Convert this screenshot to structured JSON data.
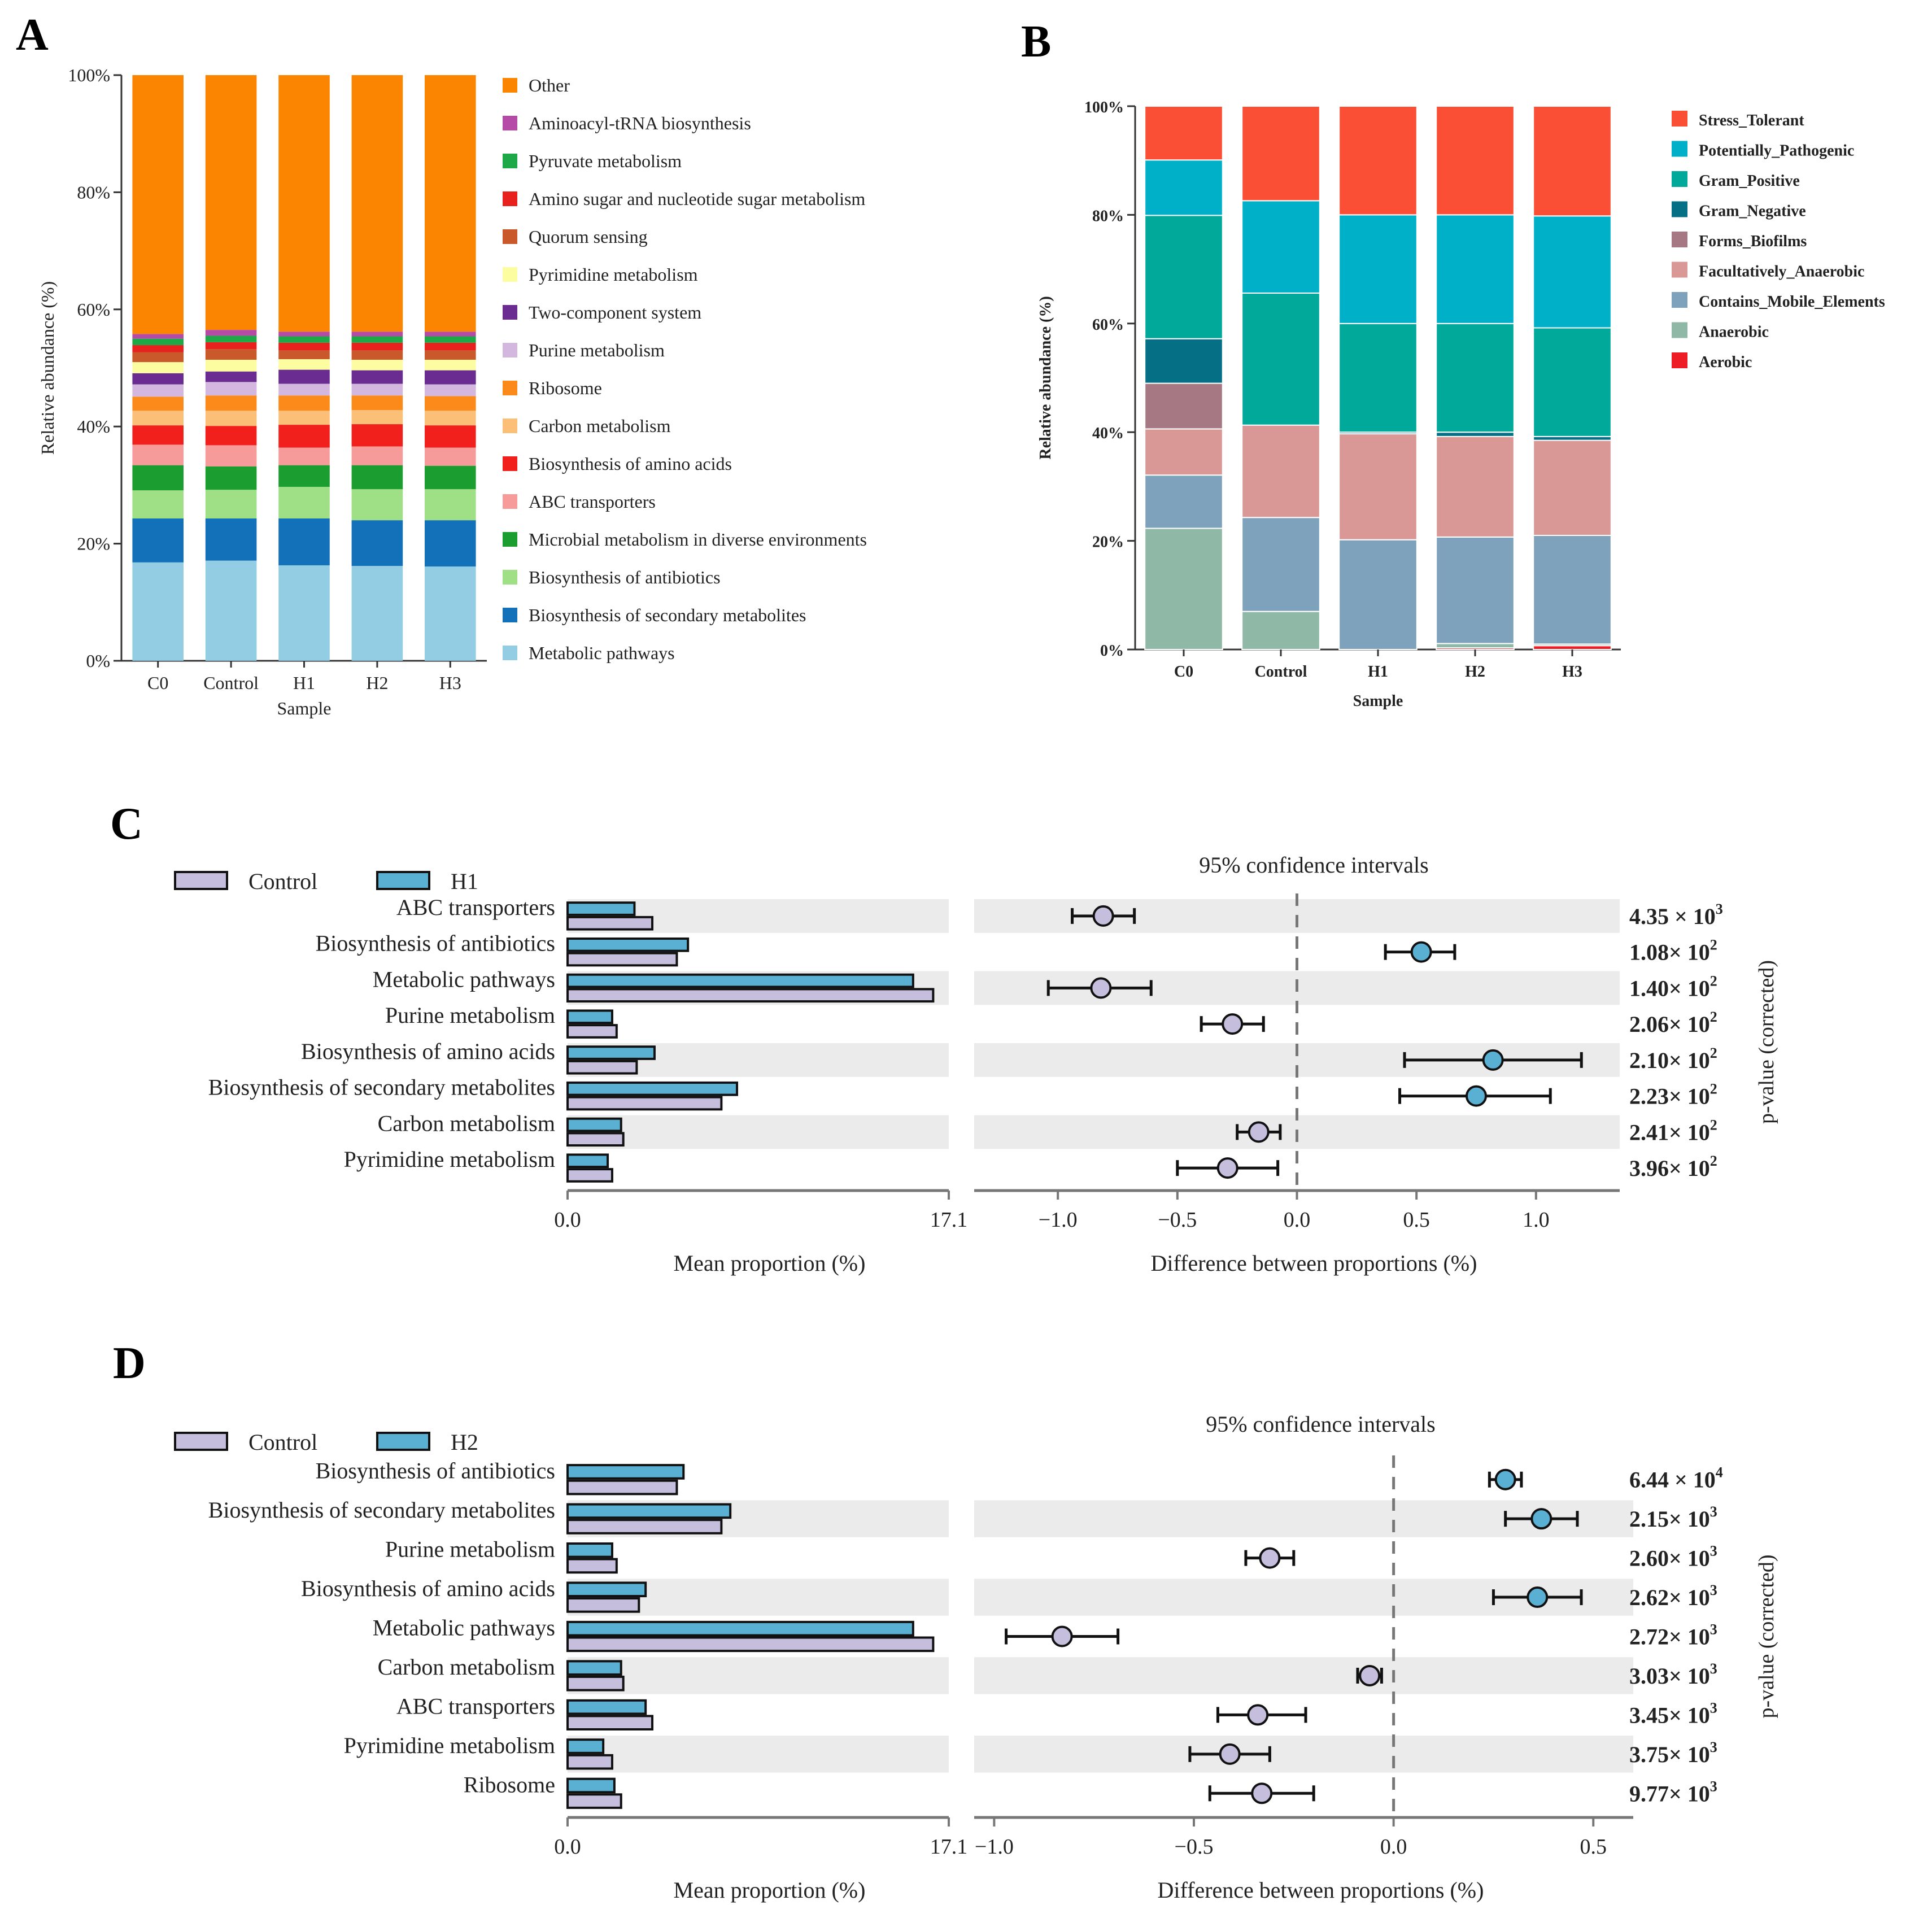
{
  "panels": {
    "A": "A",
    "B": "B",
    "C": "C",
    "D": "D"
  },
  "chart_data": [
    {
      "panel": "A",
      "type": "bar",
      "stacked": true,
      "categories": [
        "C0",
        "Control",
        "H1",
        "H2",
        "H3"
      ],
      "xlabel": "Sample",
      "ylabel": "Relative abundance (%)",
      "ylim": [
        0,
        100
      ],
      "yticks": [
        "0%",
        "20%",
        "40%",
        "60%",
        "80%",
        "100%"
      ],
      "legend_position": "right",
      "series": [
        {
          "name": "Metabolic pathways",
          "color": "#92cde3",
          "values": [
            16.8,
            17.1,
            16.3,
            16.2,
            16.1
          ]
        },
        {
          "name": "Biosynthesis of secondary metabolites",
          "color": "#1271b8",
          "values": [
            7.5,
            7.2,
            8.0,
            7.8,
            7.9
          ]
        },
        {
          "name": "Biosynthesis of antibiotics",
          "color": "#9fdf85",
          "values": [
            4.8,
            4.9,
            5.4,
            5.3,
            5.3
          ]
        },
        {
          "name": "Microbial metabolism in diverse environments",
          "color": "#1b9e2f",
          "values": [
            4.3,
            4.0,
            3.7,
            4.1,
            4.0
          ]
        },
        {
          "name": "ABC transporters",
          "color": "#f79a9a",
          "values": [
            3.5,
            3.6,
            3.0,
            3.2,
            3.1
          ]
        },
        {
          "name": "Biosynthesis of amino acids",
          "color": "#f2201d",
          "values": [
            3.3,
            3.3,
            3.9,
            3.8,
            3.8
          ]
        },
        {
          "name": "Carbon metabolism",
          "color": "#fbbf77",
          "values": [
            2.5,
            2.6,
            2.4,
            2.4,
            2.5
          ]
        },
        {
          "name": "Ribosome",
          "color": "#fb8a1a",
          "values": [
            2.4,
            2.6,
            2.6,
            2.5,
            2.5
          ]
        },
        {
          "name": "Purine metabolism",
          "color": "#d3b7de",
          "values": [
            2.1,
            2.3,
            2.0,
            2.0,
            2.0
          ]
        },
        {
          "name": "Two-component system",
          "color": "#6a2c91",
          "values": [
            1.9,
            1.8,
            2.4,
            2.3,
            2.4
          ]
        },
        {
          "name": "Pyrimidine metabolism",
          "color": "#fcfca1",
          "values": [
            1.9,
            2.0,
            1.8,
            1.8,
            1.8
          ]
        },
        {
          "name": "Quorum sensing",
          "color": "#c9582a",
          "values": [
            1.7,
            1.8,
            1.5,
            1.6,
            1.6
          ]
        },
        {
          "name": "Amino sugar and nucleotide sugar metabolism",
          "color": "#e8201e",
          "values": [
            1.2,
            1.2,
            1.3,
            1.3,
            1.3
          ]
        },
        {
          "name": "Pyruvate metabolism",
          "color": "#1fa847",
          "values": [
            1.1,
            1.1,
            1.1,
            1.1,
            1.1
          ]
        },
        {
          "name": "Aminoacyl-tRNA biosynthesis",
          "color": "#b54ba6",
          "values": [
            0.8,
            1.0,
            0.8,
            0.8,
            0.8
          ]
        },
        {
          "name": "Other",
          "color": "#fb8500",
          "values": [
            44.2,
            43.5,
            43.8,
            43.8,
            43.8
          ]
        }
      ],
      "legend_order": [
        "Other",
        "Aminoacyl-tRNA biosynthesis",
        "Pyruvate metabolism",
        "Amino sugar and nucleotide sugar metabolism",
        "Quorum sensing",
        "Pyrimidine metabolism",
        "Two-component system",
        "Purine metabolism",
        "Ribosome",
        "Carbon metabolism",
        "Biosynthesis of amino acids",
        "ABC transporters",
        "Microbial metabolism in diverse environments",
        "Biosynthesis of antibiotics",
        "Biosynthesis of secondary metabolites",
        "Metabolic pathways"
      ]
    },
    {
      "panel": "B",
      "type": "bar",
      "stacked": true,
      "categories": [
        "C0",
        "Control",
        "H1",
        "H2",
        "H3"
      ],
      "xlabel": "Sample",
      "ylabel": "Relative abundance (%)",
      "ylim": [
        0,
        100
      ],
      "yticks": [
        "0%",
        "20%",
        "40%",
        "60%",
        "80%",
        "100%"
      ],
      "legend_position": "right",
      "series": [
        {
          "name": "Aerobic",
          "color": "#ee1c24",
          "values": [
            0.0,
            0.0,
            0.0,
            0.3,
            0.7
          ]
        },
        {
          "name": "Anaerobic",
          "color": "#8fb8a7",
          "values": [
            22.3,
            7.0,
            0.0,
            0.8,
            0.3
          ]
        },
        {
          "name": "Contains_Mobile_Elements",
          "color": "#7ea2bb",
          "values": [
            9.8,
            17.3,
            20.2,
            19.6,
            20.0
          ]
        },
        {
          "name": "Facultatively_Anaerobic",
          "color": "#d99795",
          "values": [
            8.5,
            17.0,
            19.5,
            18.5,
            17.5
          ]
        },
        {
          "name": "Forms_Biofilms",
          "color": "#a57884",
          "values": [
            8.4,
            0.0,
            0.0,
            0.0,
            0.0
          ]
        },
        {
          "name": "Gram_Negative",
          "color": "#046f85",
          "values": [
            8.2,
            0.0,
            0.3,
            0.8,
            0.7
          ]
        },
        {
          "name": "Gram_Positive",
          "color": "#00a99a",
          "values": [
            22.7,
            24.3,
            20.0,
            20.0,
            20.0
          ]
        },
        {
          "name": "Potentially_Pathogenic",
          "color": "#00b0c8",
          "values": [
            10.2,
            17.0,
            20.0,
            20.0,
            20.6
          ]
        },
        {
          "name": "Stress_Tolerant",
          "color": "#fa4f34",
          "values": [
            9.9,
            17.4,
            20.0,
            20.0,
            20.2
          ]
        }
      ],
      "legend_order": [
        "Stress_Tolerant",
        "Potentially_Pathogenic",
        "Gram_Positive",
        "Gram_Negative",
        "Forms_Biofilms",
        "Facultatively_Anaerobic",
        "Contains_Mobile_Elements",
        "Anaerobic",
        "Aerobic"
      ]
    },
    {
      "panel": "C",
      "type": "bar",
      "subtype": "extended-error-bar",
      "groups": [
        {
          "name": "Control",
          "color": "#c5bfdd"
        },
        {
          "name": "H1",
          "color": "#5ab0d2"
        }
      ],
      "left_xlabel": "Mean proportion (%)",
      "left_xlim": [
        0.0,
        17.1
      ],
      "left_xticks": [
        "0.0",
        "17.1"
      ],
      "right_title": "95% confidence intervals",
      "right_xlabel": "Difference between proportions (%)",
      "right_xlim": [
        -1.35,
        1.35
      ],
      "right_xticks": [
        -1.0,
        -0.5,
        0.0,
        0.5,
        1.0
      ],
      "right_xtick_labels": [
        "−1.0",
        "−0.5",
        "0.0",
        "0.5",
        "1.0"
      ],
      "pvalue_label": "p-value (corrected)",
      "categories": [
        "ABC transporters",
        "Biosynthesis of antibiotics",
        "Metabolic pathways",
        "Purine metabolism",
        "Biosynthesis of amino acids",
        "Biosynthesis of secondary metabolites",
        "Carbon metabolism",
        "Pyrimidine metabolism"
      ],
      "group2_mean": [
        3.0,
        5.4,
        15.5,
        2.0,
        3.9,
        7.6,
        2.4,
        1.8
      ],
      "group1_mean": [
        3.8,
        4.9,
        16.4,
        2.2,
        3.1,
        6.9,
        2.5,
        2.0
      ],
      "diff": [
        -0.81,
        0.52,
        -0.82,
        -0.27,
        0.82,
        0.75,
        -0.16,
        -0.29
      ],
      "ci_low": [
        -0.94,
        0.37,
        -1.04,
        -0.4,
        0.45,
        0.43,
        -0.25,
        -0.5
      ],
      "ci_high": [
        -0.68,
        0.66,
        -0.61,
        -0.14,
        1.19,
        1.06,
        -0.07,
        -0.08
      ],
      "winner": [
        "Control",
        "H1",
        "Control",
        "Control",
        "H1",
        "H1",
        "Control",
        "Control"
      ],
      "pvalues": [
        {
          "base": "4.35 × 10",
          "exp": "3"
        },
        {
          "base": "1.08× 10",
          "exp": "2"
        },
        {
          "base": "1.40× 10",
          "exp": "2"
        },
        {
          "base": "2.06× 10",
          "exp": "2"
        },
        {
          "base": "2.10× 10",
          "exp": "2"
        },
        {
          "base": "2.23× 10",
          "exp": "2"
        },
        {
          "base": "2.41× 10",
          "exp": "2"
        },
        {
          "base": "3.96× 10",
          "exp": "2"
        }
      ]
    },
    {
      "panel": "D",
      "type": "bar",
      "subtype": "extended-error-bar",
      "groups": [
        {
          "name": "Control",
          "color": "#c5bfdd"
        },
        {
          "name": "H2",
          "color": "#5ab0d2"
        }
      ],
      "left_xlabel": "Mean proportion (%)",
      "left_xlim": [
        0.0,
        17.1
      ],
      "left_xticks": [
        "0.0",
        "17.1"
      ],
      "right_title": "95% confidence intervals",
      "right_xlabel": "Difference between proportions (%)",
      "right_xlim": [
        -1.05,
        0.6
      ],
      "right_xticks": [
        -1.0,
        -0.5,
        0.0,
        0.5
      ],
      "right_xtick_labels": [
        "−1.0",
        "−0.5",
        "0.0",
        "0.5"
      ],
      "pvalue_label": "p-value (corrected)",
      "categories": [
        "Biosynthesis of antibiotics",
        "Biosynthesis of secondary metabolites",
        "Purine metabolism",
        "Biosynthesis of amino acids",
        "Metabolic pathways",
        "Carbon metabolism",
        "ABC transporters",
        "Pyrimidine metabolism",
        "Ribosome"
      ],
      "group2_mean": [
        5.2,
        7.3,
        2.0,
        3.5,
        15.5,
        2.4,
        3.5,
        1.6,
        2.1
      ],
      "group1_mean": [
        4.9,
        6.9,
        2.2,
        3.2,
        16.4,
        2.5,
        3.8,
        2.0,
        2.4
      ],
      "diff": [
        0.28,
        0.37,
        -0.31,
        0.36,
        -0.83,
        -0.06,
        -0.34,
        -0.41,
        -0.33
      ],
      "ci_low": [
        0.24,
        0.28,
        -0.37,
        0.25,
        -0.97,
        -0.09,
        -0.44,
        -0.51,
        -0.46
      ],
      "ci_high": [
        0.32,
        0.46,
        -0.25,
        0.47,
        -0.69,
        -0.03,
        -0.22,
        -0.31,
        -0.2
      ],
      "winner": [
        "H2",
        "H2",
        "Control",
        "H2",
        "Control",
        "Control",
        "Control",
        "Control",
        "Control"
      ],
      "pvalues": [
        {
          "base": "6.44 × 10",
          "exp": "4"
        },
        {
          "base": "2.15× 10",
          "exp": "3"
        },
        {
          "base": "2.60× 10",
          "exp": "3"
        },
        {
          "base": "2.62× 10",
          "exp": "3"
        },
        {
          "base": "2.72× 10",
          "exp": "3"
        },
        {
          "base": "3.03× 10",
          "exp": "3"
        },
        {
          "base": "3.45× 10",
          "exp": "3"
        },
        {
          "base": "3.75× 10",
          "exp": "3"
        },
        {
          "base": "9.77× 10",
          "exp": "3"
        }
      ]
    }
  ]
}
